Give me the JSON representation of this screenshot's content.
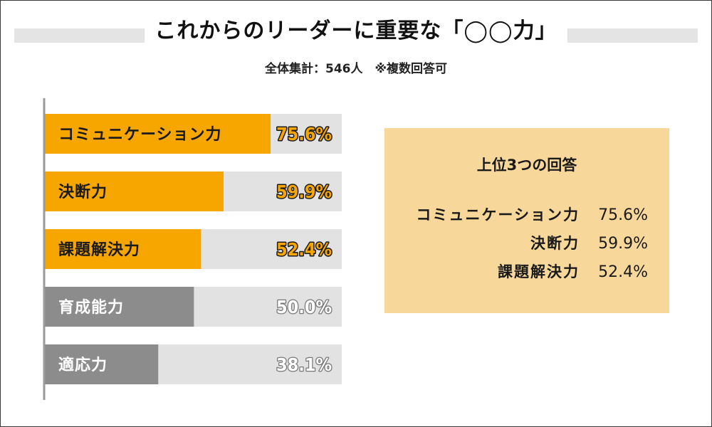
{
  "title": "これからのリーダーに重要な「◯◯力」",
  "subtitle": "全体集計：546人　※複数回答可",
  "colors": {
    "highlight": "#f7a600",
    "muted": "#8c8c8c",
    "track": "#e2e2e2",
    "summary_bg": "#f8d79b"
  },
  "chart_data": {
    "type": "bar",
    "orientation": "horizontal",
    "title": "これからのリーダーに重要な「◯◯力」",
    "xlim": [
      0,
      100
    ],
    "categories": [
      "コミュニケーション力",
      "決断力",
      "課題解決力",
      "育成能力",
      "適応力"
    ],
    "values": [
      75.6,
      59.9,
      52.4,
      50.0,
      38.1
    ],
    "value_labels": [
      "75.6%",
      "59.9%",
      "52.4%",
      "50.0%",
      "38.1%"
    ],
    "highlighted": [
      true,
      true,
      true,
      false,
      false
    ],
    "xlabel": "",
    "ylabel": ""
  },
  "summary": {
    "title": "上位3つの回答",
    "rows": [
      {
        "name": "コミュニケーション力",
        "value": "75.6%"
      },
      {
        "name": "決断力",
        "value": "59.9%"
      },
      {
        "name": "課題解決力",
        "value": "52.4%"
      }
    ]
  }
}
